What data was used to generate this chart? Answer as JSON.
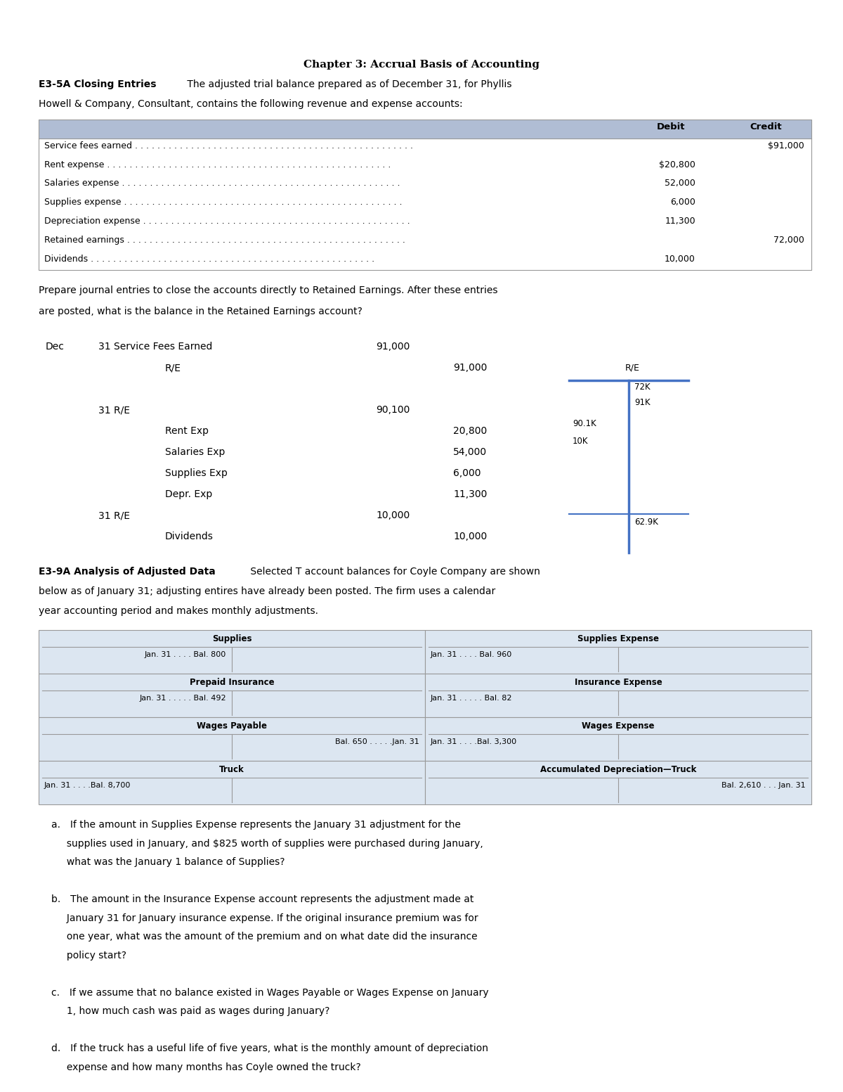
{
  "title": "Chapter 3: Accrual Basis of Accounting",
  "section1_label": "E3-5A Closing Entries",
  "section1_text_part1": " The adjusted trial balance prepared as of December 31, for Phyllis",
  "section1_text_part2": "Howell & Company, Consultant, contains the following revenue and expense accounts:",
  "table1_rows": [
    [
      "Service fees earned",
      "",
      "$91,000"
    ],
    [
      "Rent expense",
      "$20,800",
      ""
    ],
    [
      "Salaries expense",
      "52,000",
      ""
    ],
    [
      "Supplies expense",
      "6,000",
      ""
    ],
    [
      "Depreciation expense",
      "11,300",
      ""
    ],
    [
      "Retained earnings",
      "",
      "72,000"
    ],
    [
      "Dividends",
      "10,000",
      ""
    ]
  ],
  "prepare_line1": "Prepare journal entries to close the accounts directly to Retained Earnings. After these entries",
  "prepare_line2": "are posted, what is the balance in the Retained Earnings account?",
  "section2_label": "E3-9A Analysis of Adjusted Data",
  "section2_text_part1": " Selected T account balances for Coyle Company are shown",
  "section2_text_part2": "below as of January 31; adjusting entires have already been posted. The firm uses a calendar",
  "section2_text_part3": "year accounting period and makes monthly adjustments.",
  "bg_color": "#ffffff",
  "table_header_bg": "#b0bdd4",
  "t_account_bg": "#dce6f1",
  "table_border_color": "#999999",
  "blue_color": "#4472c4",
  "q_a": "a. If the amount in Supplies Expense represents the January 31 adjustment for the",
  "q_a2": "     supplies used in January, and $825 worth of supplies were purchased during January,",
  "q_a3": "     what was the January 1 balance of Supplies?",
  "q_b": "b. The amount in the Insurance Expense account represents the adjustment made at",
  "q_b2": "     January 31 for January insurance expense. If the original insurance premium was for",
  "q_b3": "     one year, what was the amount of the premium and on what date did the insurance",
  "q_b4": "     policy start?",
  "q_c": "c. If we assume that no balance existed in Wages Payable or Wages Expense on January",
  "q_c2": "     1, how much cash was paid as wages during January?",
  "q_d": "d. If the truck has a useful life of five years, what is the monthly amount of depreciation",
  "q_d2": "     expense and how many months has Coyle owned the truck?"
}
